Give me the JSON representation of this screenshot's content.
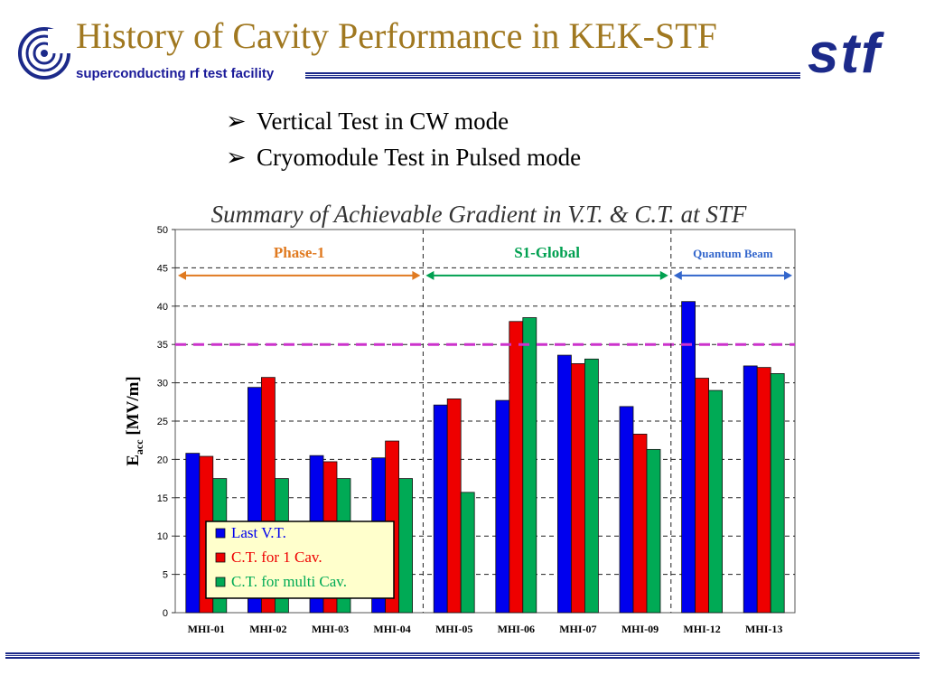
{
  "slide": {
    "title": "History of Cavity Performance in KEK-STF",
    "subtitle": "superconducting rf test facility",
    "bullets": [
      "Vertical Test in CW mode",
      "Cryomodule Test in Pulsed mode"
    ],
    "bullet_glyph": "➢",
    "logo_text": "stf"
  },
  "chart_data": {
    "type": "bar",
    "title": "Summary of Achievable Gradient in V.T. & C.T. at STF",
    "ylabel_main": "E",
    "ylabel_sub": "acc",
    "ylabel_unit": "[MV/m]",
    "ylim": [
      0,
      50
    ],
    "yticks": [
      0,
      5,
      10,
      15,
      20,
      25,
      30,
      35,
      40,
      45,
      50
    ],
    "grid": "horizontal dashed",
    "categories": [
      "MHI-01",
      "MHI-02",
      "MHI-03",
      "MHI-04",
      "MHI-05",
      "MHI-06",
      "MHI-07",
      "MHI-09",
      "MHI-12",
      "MHI-13"
    ],
    "series": [
      {
        "name": "Last V.T.",
        "color": "#0000ee",
        "values": [
          20.8,
          29.4,
          20.5,
          20.2,
          27.1,
          27.7,
          33.6,
          26.9,
          40.6,
          32.2
        ]
      },
      {
        "name": "C.T. for 1 Cav.",
        "color": "#ee0000",
        "values": [
          20.4,
          30.7,
          19.7,
          22.4,
          27.9,
          38.0,
          32.5,
          23.3,
          30.6,
          32.0
        ]
      },
      {
        "name": "C.T. for multi Cav.",
        "color": "#00aa55",
        "values": [
          17.5,
          17.5,
          17.5,
          17.5,
          15.7,
          38.5,
          33.1,
          21.3,
          29.0,
          31.2
        ]
      }
    ],
    "reference_line": {
      "value": 35,
      "color": "#cc33cc"
    },
    "legend_position": "bottom-left",
    "phases": [
      {
        "label": "Phase-1",
        "color": "#e07a20",
        "from_category": 0,
        "to_category": 3
      },
      {
        "label": "S1-Global",
        "color": "#00a050",
        "from_category": 4,
        "to_category": 7
      },
      {
        "label": "Quantum Beam",
        "color": "#3366cc",
        "from_category": 8,
        "to_category": 9
      }
    ]
  }
}
